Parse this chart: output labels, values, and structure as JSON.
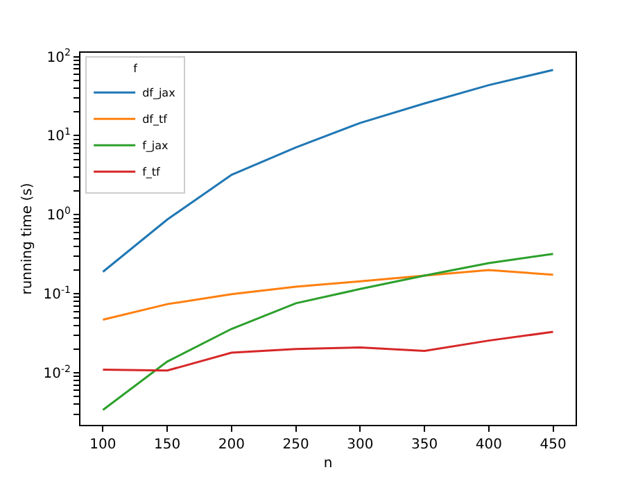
{
  "chart_data": {
    "type": "line",
    "xlabel": "n",
    "ylabel": "running time (s)",
    "legend_title": "f",
    "legend": "top left",
    "log": "y",
    "grid": false,
    "marker": "none",
    "line_style": "solid",
    "x": [
      100,
      150,
      200,
      250,
      300,
      350,
      400,
      450
    ],
    "xlim": [
      82.5,
      467.5
    ],
    "xticks": [
      100,
      150,
      200,
      250,
      300,
      350,
      400,
      450
    ],
    "ylim": [
      0.0022,
      112
    ],
    "yticks": [
      {
        "value": 0.01,
        "label": "10$^{-2}$"
      },
      {
        "value": 0.1,
        "label": "10$^{-1}$"
      },
      {
        "value": 1,
        "label": "10$^{0}$"
      },
      {
        "value": 10,
        "label": "10$^{1}$"
      },
      {
        "value": 100,
        "label": "10$^{2}$"
      },
      {
        "value": 0.003,
        "label": null
      },
      {
        "value": 0.004,
        "label": null
      },
      {
        "value": 0.005,
        "label": null
      },
      {
        "value": 0.006,
        "label": null
      },
      {
        "value": 0.007,
        "label": null
      },
      {
        "value": 0.008,
        "label": null
      },
      {
        "value": 0.009,
        "label": null
      },
      {
        "value": 0.02,
        "label": null
      },
      {
        "value": 0.03,
        "label": null
      },
      {
        "value": 0.04,
        "label": null
      },
      {
        "value": 0.05,
        "label": null
      },
      {
        "value": 0.06,
        "label": null
      },
      {
        "value": 0.07,
        "label": null
      },
      {
        "value": 0.08,
        "label": null
      },
      {
        "value": 0.09,
        "label": null
      },
      {
        "value": 0.2,
        "label": null
      },
      {
        "value": 0.3,
        "label": null
      },
      {
        "value": 0.4,
        "label": null
      },
      {
        "value": 0.5,
        "label": null
      },
      {
        "value": 0.6,
        "label": null
      },
      {
        "value": 0.7,
        "label": null
      },
      {
        "value": 0.8,
        "label": null
      },
      {
        "value": 0.9,
        "label": null
      },
      {
        "value": 2,
        "label": null
      },
      {
        "value": 3,
        "label": null
      },
      {
        "value": 4,
        "label": null
      },
      {
        "value": 5,
        "label": null
      },
      {
        "value": 6,
        "label": null
      },
      {
        "value": 7,
        "label": null
      },
      {
        "value": 8,
        "label": null
      },
      {
        "value": 9,
        "label": null
      },
      {
        "value": 20,
        "label": null
      },
      {
        "value": 30,
        "label": null
      },
      {
        "value": 40,
        "label": null
      },
      {
        "value": 50,
        "label": null
      },
      {
        "value": 60,
        "label": null
      },
      {
        "value": 70,
        "label": null
      },
      {
        "value": 80,
        "label": null
      },
      {
        "value": 90,
        "label": null
      }
    ],
    "series": [
      {
        "name": "df_jax",
        "color": "#1f77b4",
        "values": [
          0.19,
          0.87,
          3.2,
          7.1,
          14.5,
          25.6,
          43.6,
          68
        ]
      },
      {
        "name": "df_tf",
        "color": "#ff7f0e",
        "values": [
          0.047,
          0.074,
          0.099,
          0.123,
          0.144,
          0.17,
          0.2,
          0.174
        ]
      },
      {
        "name": "f_jax",
        "color": "#2ca02c",
        "values": [
          0.0034,
          0.0139,
          0.036,
          0.076,
          0.115,
          0.17,
          0.245,
          0.32
        ]
      },
      {
        "name": "f_tf",
        "color": "#d62728",
        "values": [
          0.011,
          0.0107,
          0.018,
          0.02,
          0.021,
          0.019,
          0.0256,
          0.033
        ]
      }
    ]
  }
}
